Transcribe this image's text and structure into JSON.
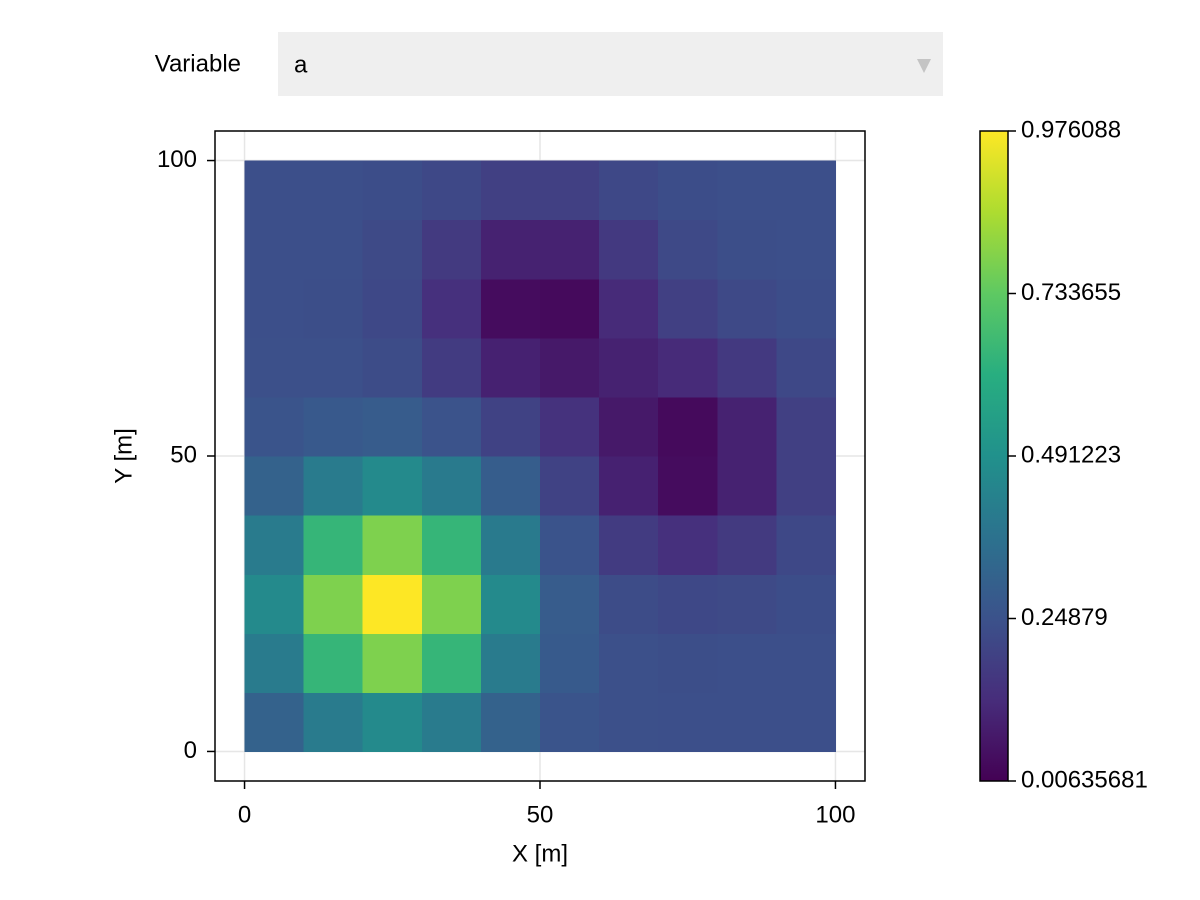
{
  "menu": {
    "label": "Variable",
    "selected": "a"
  },
  "chart_data": {
    "type": "heatmap",
    "xlabel": "X [m]",
    "ylabel": "Y [m]",
    "x": [
      5,
      15,
      25,
      35,
      45,
      55,
      65,
      75,
      85,
      95
    ],
    "y": [
      5,
      15,
      25,
      35,
      45,
      55,
      65,
      75,
      85,
      95
    ],
    "values": [
      [
        0.308,
        0.406,
        0.463,
        0.406,
        0.308,
        0.256,
        0.242,
        0.24,
        0.24,
        0.24
      ],
      [
        0.406,
        0.644,
        0.783,
        0.644,
        0.406,
        0.278,
        0.243,
        0.237,
        0.238,
        0.239
      ],
      [
        0.463,
        0.783,
        0.976,
        0.783,
        0.462,
        0.285,
        0.229,
        0.216,
        0.222,
        0.234
      ],
      [
        0.406,
        0.644,
        0.783,
        0.644,
        0.402,
        0.253,
        0.174,
        0.139,
        0.169,
        0.215
      ],
      [
        0.308,
        0.406,
        0.462,
        0.401,
        0.29,
        0.197,
        0.095,
        0.037,
        0.097,
        0.19
      ],
      [
        0.256,
        0.277,
        0.285,
        0.252,
        0.197,
        0.144,
        0.072,
        0.032,
        0.096,
        0.19
      ],
      [
        0.242,
        0.243,
        0.229,
        0.174,
        0.095,
        0.072,
        0.098,
        0.121,
        0.167,
        0.215
      ],
      [
        0.24,
        0.237,
        0.216,
        0.139,
        0.037,
        0.032,
        0.121,
        0.19,
        0.219,
        0.234
      ],
      [
        0.24,
        0.238,
        0.222,
        0.169,
        0.097,
        0.097,
        0.168,
        0.219,
        0.236,
        0.239
      ],
      [
        0.24,
        0.239,
        0.234,
        0.215,
        0.19,
        0.19,
        0.215,
        0.234,
        0.239,
        0.24
      ]
    ],
    "xlim": [
      -5,
      105
    ],
    "ylim": [
      -5,
      105
    ],
    "xticks": [
      0,
      50,
      100
    ],
    "yticks": [
      0,
      50,
      100
    ],
    "grid": true,
    "colormap": "viridis",
    "colorrange": [
      0.00635681,
      0.976088
    ],
    "colorbar_ticks": [
      0.00635681,
      0.24879,
      0.491223,
      0.733655,
      0.976088
    ]
  }
}
